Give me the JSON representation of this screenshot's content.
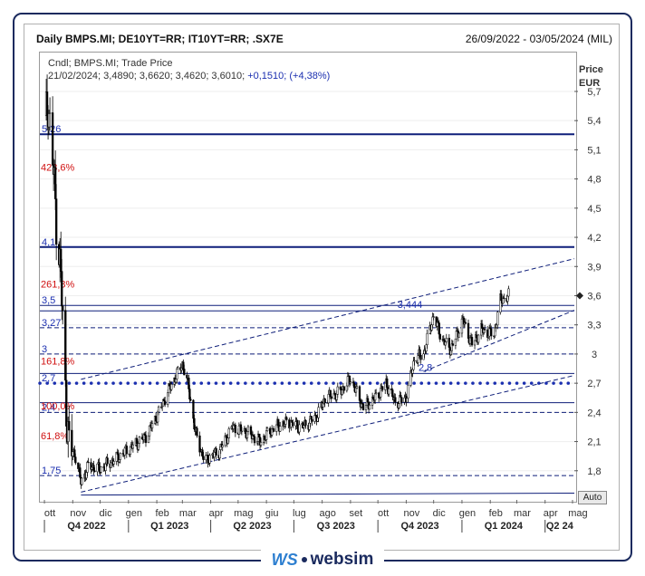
{
  "header": {
    "title": "Daily BMPS.MI; DE10YT=RR; IT10YT=RR; .SX7E",
    "range": "26/09/2022 - 03/05/2024 (MIL)"
  },
  "legend": {
    "line1": "Cndl; BMPS.MI; Trade Price",
    "ohlc": "21/02/2024; 3,4890; 3,6620; 3,4620; 3,6010;",
    "change": "+0,1510; (+4,38%)"
  },
  "price_unit": [
    "Price",
    "EUR"
  ],
  "auto_button": "Auto",
  "logo": {
    "mark": "WS",
    "word": "websim"
  },
  "colors": {
    "candle": "#000000",
    "level_line": "#0f1f7a",
    "dotted_level": "#1b2fb0",
    "fib_label": "#d01010",
    "level_label": "#1b2fb0",
    "frame": "#1a2a5e"
  },
  "chart_data": {
    "type": "candlestick",
    "ylim": [
      1.5,
      6.1
    ],
    "y_ticks": [
      {
        "v": 5.7,
        "label": "5,7"
      },
      {
        "v": 5.4,
        "label": "5,4"
      },
      {
        "v": 5.1,
        "label": "5,1"
      },
      {
        "v": 4.8,
        "label": "4,8"
      },
      {
        "v": 4.5,
        "label": "4,5"
      },
      {
        "v": 4.2,
        "label": "4,2"
      },
      {
        "v": 3.9,
        "label": "3,9"
      },
      {
        "v": 3.6,
        "label": "3,6"
      },
      {
        "v": 3.3,
        "label": "3,3"
      },
      {
        "v": 3.0,
        "label": "3"
      },
      {
        "v": 2.7,
        "label": "2,7"
      },
      {
        "v": 2.4,
        "label": "2,4"
      },
      {
        "v": 2.1,
        "label": "2,1"
      },
      {
        "v": 1.8,
        "label": "1,8"
      }
    ],
    "x_months": [
      "ott",
      "nov",
      "dic",
      "gen",
      "feb",
      "mar",
      "apr",
      "mag",
      "giu",
      "lug",
      "ago",
      "set",
      "ott",
      "nov",
      "dic",
      "gen",
      "feb",
      "mar",
      "apr",
      "mag"
    ],
    "x_quarters": [
      "Q4 2022",
      "Q1 2023",
      "Q2 2023",
      "Q3 2023",
      "Q4 2023",
      "Q1 2024",
      "Q2 24"
    ],
    "last_price_marker": 3.6,
    "horizontal_levels": [
      {
        "value": 5.26,
        "label": "5,26",
        "style": "solid-thick"
      },
      {
        "value": 4.1,
        "label": "4,1",
        "style": "solid-thick"
      },
      {
        "value": 3.5,
        "label": "3,5",
        "style": "solid"
      },
      {
        "value": 3.444,
        "label": "3,444",
        "style": "solid"
      },
      {
        "value": 3.27,
        "label": "3,27",
        "style": "dashed"
      },
      {
        "value": 3.0,
        "label": "3",
        "style": "dashed"
      },
      {
        "value": 2.8,
        "label": "2,8",
        "style": "solid"
      },
      {
        "value": 2.7,
        "label": "2,7",
        "style": "dotted-thick"
      },
      {
        "value": 2.5,
        "label": "",
        "style": "solid"
      },
      {
        "value": 2.4,
        "label": "2,4",
        "style": "dashed"
      },
      {
        "value": 1.75,
        "label": "1,75",
        "style": "dashed"
      }
    ],
    "fib_labels": [
      {
        "value": 4.92,
        "label": "423,6%"
      },
      {
        "value": 3.72,
        "label": "261,8%"
      },
      {
        "value": 2.93,
        "label": "161,8%"
      },
      {
        "value": 2.47,
        "label": "100,0%"
      },
      {
        "value": 2.16,
        "label": "61,8%"
      }
    ],
    "trendlines": [
      {
        "from": {
          "x": "2022-11-10",
          "y": 1.55
        },
        "to": {
          "x": "2024-05-03",
          "y": 1.57
        },
        "style": "solid"
      },
      {
        "from": {
          "x": "2022-11-10",
          "y": 1.58
        },
        "to": {
          "x": "2024-05-03",
          "y": 2.78
        },
        "style": "dashed"
      },
      {
        "from": {
          "x": "2022-11-10",
          "y": 2.74
        },
        "to": {
          "x": "2024-05-03",
          "y": 3.98
        },
        "style": "dashed"
      },
      {
        "from": {
          "x": "2023-11-20",
          "y": 2.82
        },
        "to": {
          "x": "2024-05-03",
          "y": 3.45
        },
        "style": "dashed"
      }
    ],
    "path": [
      {
        "date": "2022-10-01",
        "price": 5.3
      },
      {
        "date": "2022-10-05",
        "price": 5.6
      },
      {
        "date": "2022-10-10",
        "price": 5.0
      },
      {
        "date": "2022-10-14",
        "price": 4.4
      },
      {
        "date": "2022-10-19",
        "price": 3.8
      },
      {
        "date": "2022-10-24",
        "price": 2.6
      },
      {
        "date": "2022-10-28",
        "price": 2.05
      },
      {
        "date": "2022-11-04",
        "price": 1.95
      },
      {
        "date": "2022-11-10",
        "price": 1.68
      },
      {
        "date": "2022-11-18",
        "price": 1.85
      },
      {
        "date": "2022-12-01",
        "price": 1.82
      },
      {
        "date": "2022-12-15",
        "price": 1.9
      },
      {
        "date": "2023-01-05",
        "price": 2.05
      },
      {
        "date": "2023-01-20",
        "price": 2.15
      },
      {
        "date": "2023-02-03",
        "price": 2.4
      },
      {
        "date": "2023-02-15",
        "price": 2.65
      },
      {
        "date": "2023-03-01",
        "price": 2.9
      },
      {
        "date": "2023-03-08",
        "price": 2.65
      },
      {
        "date": "2023-03-15",
        "price": 2.2
      },
      {
        "date": "2023-03-25",
        "price": 1.9
      },
      {
        "date": "2023-04-10",
        "price": 2.0
      },
      {
        "date": "2023-04-25",
        "price": 2.25
      },
      {
        "date": "2023-05-10",
        "price": 2.2
      },
      {
        "date": "2023-05-25",
        "price": 2.1
      },
      {
        "date": "2023-06-10",
        "price": 2.25
      },
      {
        "date": "2023-06-25",
        "price": 2.3
      },
      {
        "date": "2023-07-10",
        "price": 2.25
      },
      {
        "date": "2023-07-25",
        "price": 2.35
      },
      {
        "date": "2023-08-05",
        "price": 2.55
      },
      {
        "date": "2023-08-20",
        "price": 2.6
      },
      {
        "date": "2023-09-01",
        "price": 2.75
      },
      {
        "date": "2023-09-15",
        "price": 2.45
      },
      {
        "date": "2023-09-28",
        "price": 2.55
      },
      {
        "date": "2023-10-10",
        "price": 2.7
      },
      {
        "date": "2023-10-20",
        "price": 2.5
      },
      {
        "date": "2023-11-01",
        "price": 2.55
      },
      {
        "date": "2023-11-10",
        "price": 2.95
      },
      {
        "date": "2023-11-20",
        "price": 3.0
      },
      {
        "date": "2023-12-01",
        "price": 3.4
      },
      {
        "date": "2023-12-10",
        "price": 3.15
      },
      {
        "date": "2023-12-20",
        "price": 3.05
      },
      {
        "date": "2024-01-02",
        "price": 3.35
      },
      {
        "date": "2024-01-12",
        "price": 3.1
      },
      {
        "date": "2024-01-22",
        "price": 3.25
      },
      {
        "date": "2024-02-05",
        "price": 3.2
      },
      {
        "date": "2024-02-12",
        "price": 3.55
      },
      {
        "date": "2024-02-21",
        "price": 3.6
      }
    ]
  }
}
